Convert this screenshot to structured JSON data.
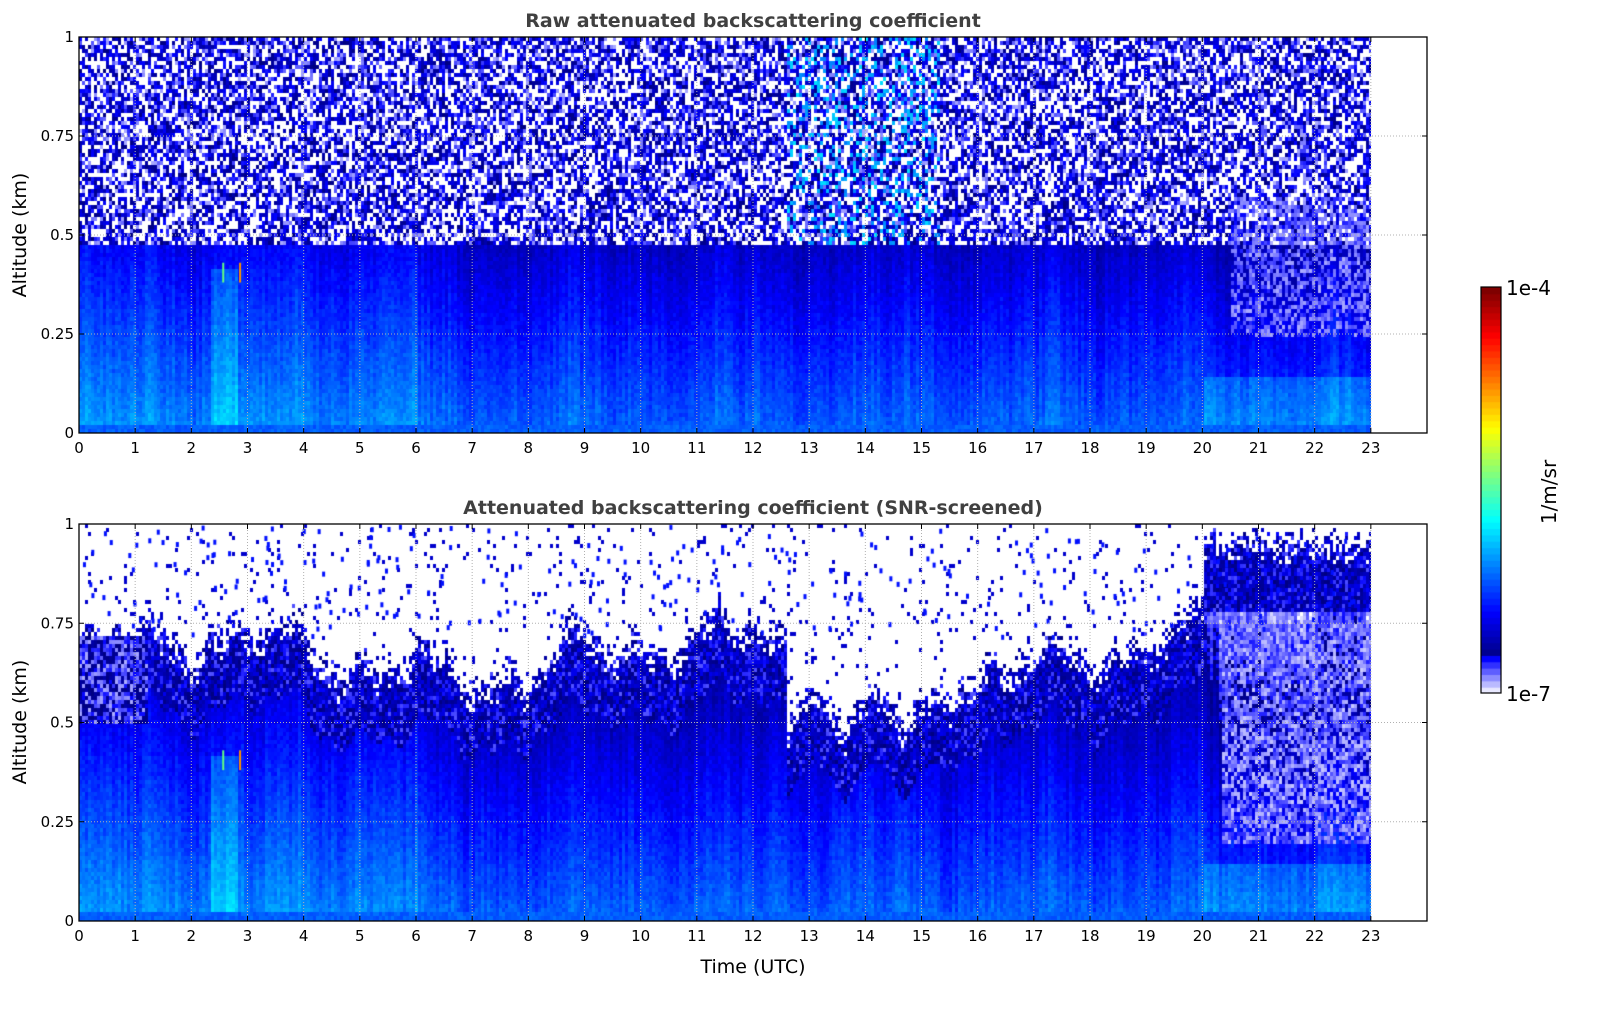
{
  "chart_data": [
    {
      "type": "heatmap",
      "title": "Raw attenuated backscattering coefficient",
      "xlabel": "",
      "ylabel": "Altitude (km)",
      "xlim": [
        0,
        24
      ],
      "ylim": [
        0,
        1
      ],
      "xticks": [
        "0",
        "1",
        "2",
        "3",
        "4",
        "5",
        "6",
        "7",
        "8",
        "9",
        "10",
        "11",
        "12",
        "13",
        "14",
        "15",
        "16",
        "17",
        "18",
        "19",
        "20",
        "21",
        "22",
        "23"
      ],
      "yticks": [
        "0",
        "0.25",
        "0.5",
        "0.75",
        "1"
      ],
      "ytick_values": [
        0,
        0.25,
        0.5,
        0.75,
        1
      ],
      "data_end_hour": 23,
      "screened": false,
      "grid": true
    },
    {
      "type": "heatmap",
      "title": "Attenuated backscattering coefficient (SNR-screened)",
      "xlabel": "Time (UTC)",
      "ylabel": "Altitude (km)",
      "xlim": [
        0,
        24
      ],
      "ylim": [
        0,
        1
      ],
      "xticks": [
        "0",
        "1",
        "2",
        "3",
        "4",
        "5",
        "6",
        "7",
        "8",
        "9",
        "10",
        "11",
        "12",
        "13",
        "14",
        "15",
        "16",
        "17",
        "18",
        "19",
        "20",
        "21",
        "22",
        "23"
      ],
      "yticks": [
        "0",
        "0.25",
        "0.5",
        "0.75",
        "1"
      ],
      "ytick_values": [
        0,
        0.25,
        0.5,
        0.75,
        1
      ],
      "data_end_hour": 23,
      "screened": true,
      "grid": true
    }
  ],
  "colorbar": {
    "label": "1/m/sr",
    "min_label": "1e-7",
    "max_label": "1e-4",
    "min": 1e-07,
    "max": 0.0001,
    "scale": "log",
    "colormap": "jet with light-lavender low end"
  }
}
